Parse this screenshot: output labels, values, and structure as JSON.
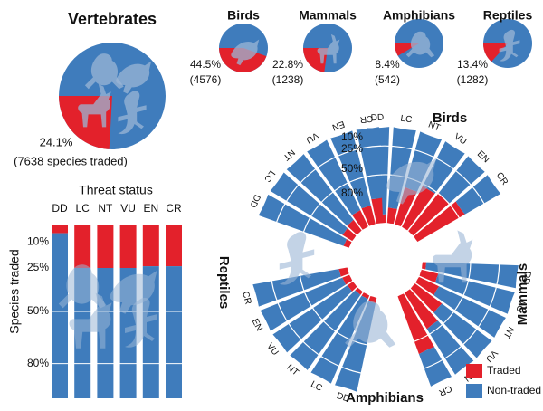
{
  "colors": {
    "traded": "#e3212b",
    "nontraded": "#3f7cbc",
    "silhouette": "#9bb6d6"
  },
  "icons": [
    "frog-silhouette-icon",
    "bird-silhouette-icon",
    "deer-silhouette-icon",
    "lizard-silhouette-icon"
  ],
  "pies": {
    "vertebrates": {
      "title": "Vertebrates",
      "percent": "24.1%",
      "count": "(7638 species traded)",
      "fraction": 0.241
    },
    "birds": {
      "title": "Birds",
      "percent": "44.5%",
      "count": "(4576)",
      "fraction": 0.445
    },
    "mammals": {
      "title": "Mammals",
      "percent": "22.8%",
      "count": "(1238)",
      "fraction": 0.228
    },
    "amphibians": {
      "title": "Amphibians",
      "percent": "8.4%",
      "count": "(542)",
      "fraction": 0.084
    },
    "reptiles": {
      "title": "Reptiles",
      "percent": "13.4%",
      "count": "(1282)",
      "fraction": 0.134
    }
  },
  "threat": {
    "title": "Threat status",
    "ylabel": "Species traded",
    "ticks": [
      "10%",
      "25%",
      "50%",
      "80%"
    ],
    "categories": [
      "DD",
      "LC",
      "NT",
      "VU",
      "EN",
      "CR"
    ]
  },
  "radial": {
    "ticks": [
      "10%",
      "25%",
      "50%",
      "80%"
    ],
    "categories": [
      "DD",
      "LC",
      "NT",
      "VU",
      "EN",
      "CR"
    ],
    "groups": {
      "birds": "Birds",
      "mammals": "Mammals",
      "amphibians": "Amphibians",
      "reptiles": "Reptiles"
    }
  },
  "legend": {
    "traded": "Traded",
    "nontraded": "Non-traded"
  },
  "chart_data": [
    {
      "type": "pie",
      "title": "Vertebrates",
      "categories": [
        "Traded",
        "Non-traded"
      ],
      "values": [
        24.1,
        75.9
      ],
      "annotations": [
        "24.1%",
        "(7638 species traded)"
      ]
    },
    {
      "type": "pie",
      "categories": [
        "Birds",
        "Mammals",
        "Amphibians",
        "Reptiles"
      ],
      "series": [
        {
          "name": "Traded",
          "values": [
            44.5,
            22.8,
            8.4,
            13.4
          ]
        },
        {
          "name": "Non-traded",
          "values": [
            55.5,
            77.2,
            91.6,
            86.6
          ]
        }
      ],
      "counts_traded": [
        4576,
        1238,
        542,
        1282
      ]
    },
    {
      "type": "bar",
      "title": "Threat status",
      "ylabel": "Species traded",
      "categories": [
        "DD",
        "LC",
        "NT",
        "VU",
        "EN",
        "CR"
      ],
      "y_tick_labels": [
        "10%",
        "25%",
        "50%",
        "80%"
      ],
      "series": [
        {
          "name": "Traded",
          "values": [
            5,
            25,
            25,
            25,
            24,
            24
          ]
        },
        {
          "name": "Non-traded",
          "values": [
            95,
            75,
            75,
            75,
            76,
            76
          ]
        }
      ]
    },
    {
      "type": "bar",
      "subtype": "radial-stacked",
      "categories": [
        "DD",
        "LC",
        "NT",
        "VU",
        "EN",
        "CR"
      ],
      "r_tick_labels": [
        "10%",
        "25%",
        "50%",
        "80%"
      ],
      "series": [
        {
          "name": "Birds",
          "traded": [
            9,
            16,
            40,
            48,
            51,
            57
          ]
        },
        {
          "name": "Mammals",
          "traded": [
            4,
            18,
            23,
            35,
            44,
            64
          ]
        },
        {
          "name": "Amphibians",
          "traded": [
            6,
            4,
            4,
            7,
            8,
            9
          ]
        },
        {
          "name": "Reptiles",
          "traded": [
            6,
            12,
            14,
            19,
            20,
            26
          ]
        }
      ]
    }
  ]
}
